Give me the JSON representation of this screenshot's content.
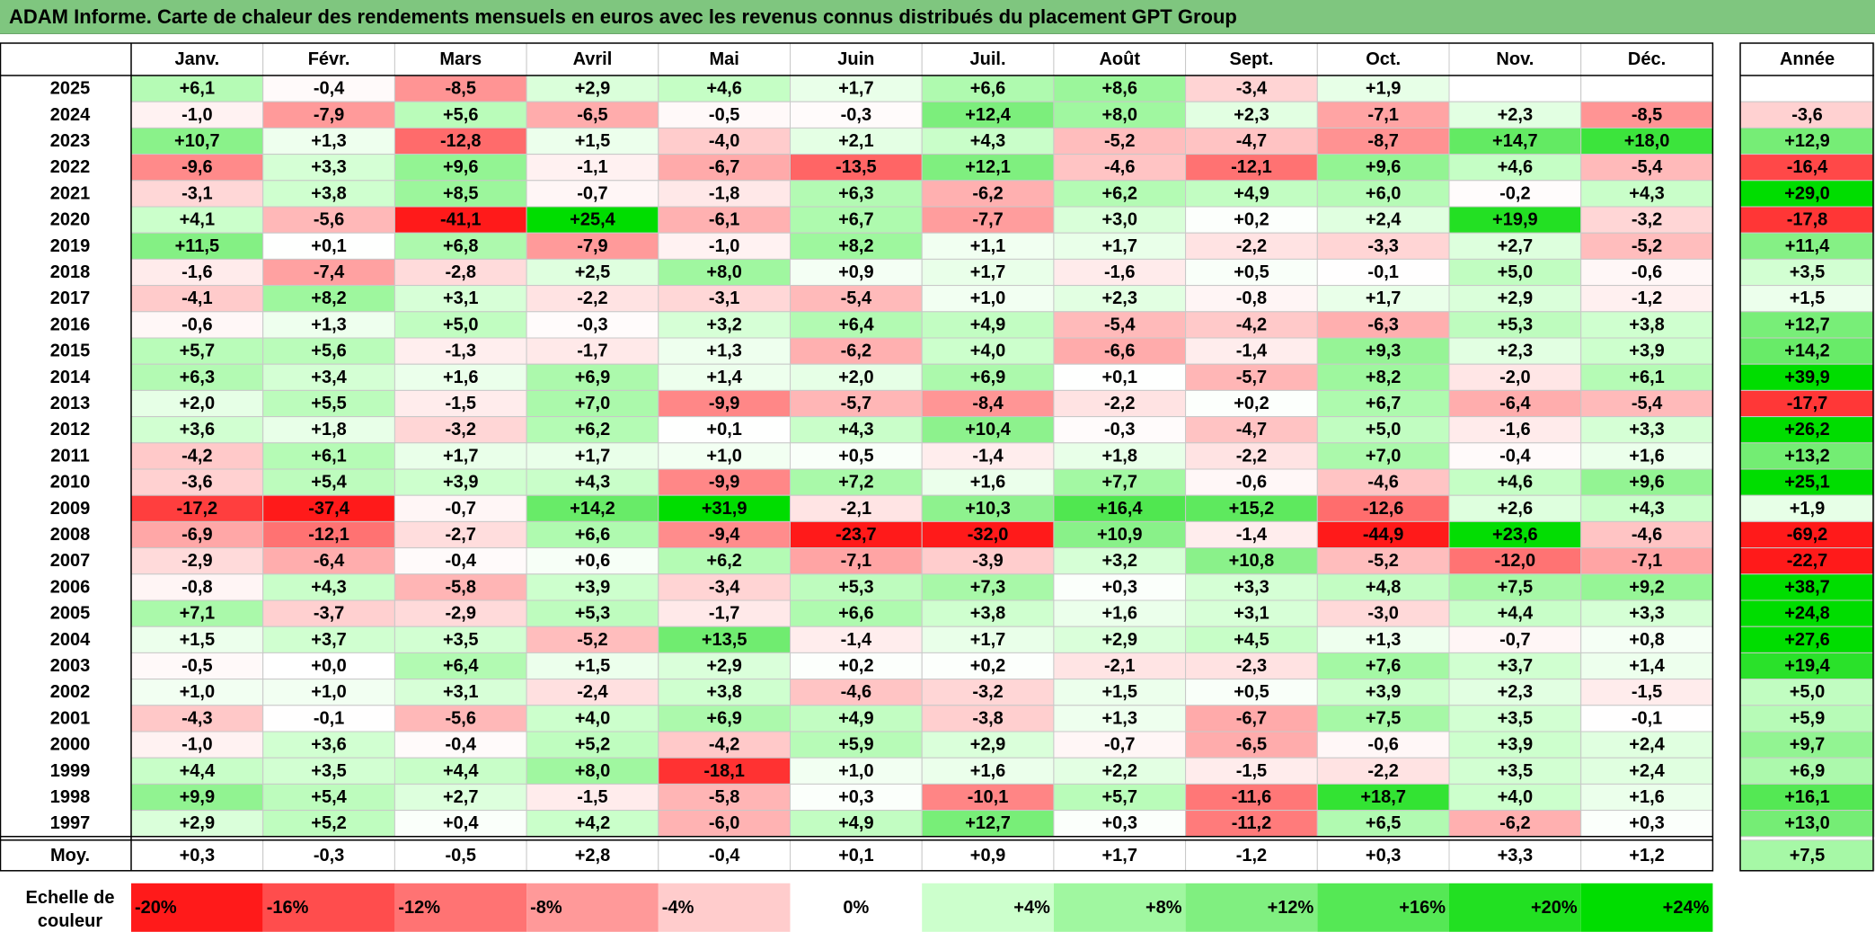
{
  "title": "ADAM Informe. Carte de chaleur des rendements mensuels en euros avec les revenus connus distribués du placement GPT Group",
  "chart_data": {
    "type": "heatmap",
    "columns": [
      "Janv.",
      "Févr.",
      "Mars",
      "Avril",
      "Mai",
      "Juin",
      "Juil.",
      "Août",
      "Sept.",
      "Oct.",
      "Nov.",
      "Déc."
    ],
    "year_header": "Année",
    "rows": [
      {
        "year": "2025",
        "months": [
          6.1,
          -0.4,
          -8.5,
          2.9,
          4.6,
          1.7,
          6.6,
          8.6,
          -3.4,
          1.9,
          null,
          null
        ],
        "annual": null
      },
      {
        "year": "2024",
        "months": [
          -1.0,
          -7.9,
          5.6,
          -6.5,
          -0.5,
          -0.3,
          12.4,
          8.0,
          2.3,
          -7.1,
          2.3,
          -8.5
        ],
        "annual": -3.6
      },
      {
        "year": "2023",
        "months": [
          10.7,
          1.3,
          -12.8,
          1.5,
          -4.0,
          2.1,
          4.3,
          -5.2,
          -4.7,
          -8.7,
          14.7,
          18.0
        ],
        "annual": 12.9
      },
      {
        "year": "2022",
        "months": [
          -9.6,
          3.3,
          9.6,
          -1.1,
          -6.7,
          -13.5,
          12.1,
          -4.6,
          -12.1,
          9.6,
          4.6,
          -5.4
        ],
        "annual": -16.4
      },
      {
        "year": "2021",
        "months": [
          -3.1,
          3.8,
          8.5,
          -0.7,
          -1.8,
          6.3,
          -6.2,
          6.2,
          4.9,
          6.0,
          -0.2,
          4.3
        ],
        "annual": 29.0
      },
      {
        "year": "2020",
        "months": [
          4.1,
          -5.6,
          -41.1,
          25.4,
          -6.1,
          6.7,
          -7.7,
          3.0,
          0.2,
          2.4,
          19.9,
          -3.2
        ],
        "annual": -17.8
      },
      {
        "year": "2019",
        "months": [
          11.5,
          0.1,
          6.8,
          -7.9,
          -1.0,
          8.2,
          1.1,
          1.7,
          -2.2,
          -3.3,
          2.7,
          -5.2
        ],
        "annual": 11.4
      },
      {
        "year": "2018",
        "months": [
          -1.6,
          -7.4,
          -2.8,
          2.5,
          8.0,
          0.9,
          1.7,
          -1.6,
          0.5,
          -0.1,
          5.0,
          -0.6
        ],
        "annual": 3.5
      },
      {
        "year": "2017",
        "months": [
          -4.1,
          8.2,
          3.1,
          -2.2,
          -3.1,
          -5.4,
          1.0,
          2.3,
          -0.8,
          1.7,
          2.9,
          -1.2
        ],
        "annual": 1.5
      },
      {
        "year": "2016",
        "months": [
          -0.6,
          1.3,
          5.0,
          -0.3,
          3.2,
          6.4,
          4.9,
          -5.4,
          -4.2,
          -6.3,
          5.3,
          3.8
        ],
        "annual": 12.7
      },
      {
        "year": "2015",
        "months": [
          5.7,
          5.6,
          -1.3,
          -1.7,
          1.3,
          -6.2,
          4.0,
          -6.6,
          -1.4,
          9.3,
          2.3,
          3.9
        ],
        "annual": 14.2
      },
      {
        "year": "2014",
        "months": [
          6.3,
          3.4,
          1.6,
          6.9,
          1.4,
          2.0,
          6.9,
          0.1,
          -5.7,
          8.2,
          -2.0,
          6.1
        ],
        "annual": 39.9
      },
      {
        "year": "2013",
        "months": [
          2.0,
          5.5,
          -1.5,
          7.0,
          -9.9,
          -5.7,
          -8.4,
          -2.2,
          0.2,
          6.7,
          -6.4,
          -5.4
        ],
        "annual": -17.7
      },
      {
        "year": "2012",
        "months": [
          3.6,
          1.8,
          -3.2,
          6.2,
          0.1,
          4.3,
          10.4,
          -0.3,
          -4.7,
          5.0,
          -1.6,
          3.3
        ],
        "annual": 26.2
      },
      {
        "year": "2011",
        "months": [
          -4.2,
          6.1,
          1.7,
          1.7,
          1.0,
          0.5,
          -1.4,
          1.8,
          -2.2,
          7.0,
          -0.4,
          1.6
        ],
        "annual": 13.2
      },
      {
        "year": "2010",
        "months": [
          -3.6,
          5.4,
          3.9,
          4.3,
          -9.9,
          7.2,
          1.6,
          7.7,
          -0.6,
          -4.6,
          4.6,
          9.6
        ],
        "annual": 25.1
      },
      {
        "year": "2009",
        "months": [
          -17.2,
          -37.4,
          -0.7,
          14.2,
          31.9,
          -2.1,
          10.3,
          16.4,
          15.2,
          -12.6,
          2.6,
          4.3
        ],
        "annual": 1.9
      },
      {
        "year": "2008",
        "months": [
          -6.9,
          -12.1,
          -2.7,
          6.6,
          -9.4,
          -23.7,
          -32.0,
          10.9,
          -1.4,
          -44.9,
          23.6,
          -4.6
        ],
        "annual": -69.2
      },
      {
        "year": "2007",
        "months": [
          -2.9,
          -6.4,
          -0.4,
          0.6,
          6.2,
          -7.1,
          -3.9,
          3.2,
          10.8,
          -5.2,
          -12.0,
          -7.1
        ],
        "annual": -22.7
      },
      {
        "year": "2006",
        "months": [
          -0.8,
          4.3,
          -5.8,
          3.9,
          -3.4,
          5.3,
          7.3,
          0.3,
          3.3,
          4.8,
          7.5,
          9.2
        ],
        "annual": 38.7
      },
      {
        "year": "2005",
        "months": [
          7.1,
          -3.7,
          -2.9,
          5.3,
          -1.7,
          6.6,
          3.8,
          1.6,
          3.1,
          -3.0,
          4.4,
          3.3
        ],
        "annual": 24.8
      },
      {
        "year": "2004",
        "months": [
          1.5,
          3.7,
          3.5,
          -5.2,
          13.5,
          -1.4,
          1.7,
          2.9,
          4.5,
          1.3,
          -0.7,
          0.8
        ],
        "annual": 27.6
      },
      {
        "year": "2003",
        "months": [
          -0.5,
          0.0,
          6.4,
          1.5,
          2.9,
          0.2,
          0.2,
          -2.1,
          -2.3,
          7.6,
          3.7,
          1.4
        ],
        "annual": 19.4
      },
      {
        "year": "2002",
        "months": [
          1.0,
          1.0,
          3.1,
          -2.4,
          3.8,
          -4.6,
          -3.2,
          1.5,
          0.5,
          3.9,
          2.3,
          -1.5
        ],
        "annual": 5.0
      },
      {
        "year": "2001",
        "months": [
          -4.3,
          -0.1,
          -5.6,
          4.0,
          6.9,
          4.9,
          -3.8,
          1.3,
          -6.7,
          7.5,
          3.5,
          -0.1
        ],
        "annual": 5.9
      },
      {
        "year": "2000",
        "months": [
          -1.0,
          3.6,
          -0.4,
          5.2,
          -4.2,
          5.9,
          2.9,
          -0.7,
          -6.5,
          -0.6,
          3.9,
          2.4
        ],
        "annual": 9.7
      },
      {
        "year": "1999",
        "months": [
          4.4,
          3.5,
          4.4,
          8.0,
          -18.1,
          1.0,
          1.6,
          2.2,
          -1.5,
          -2.2,
          3.5,
          2.4
        ],
        "annual": 6.9
      },
      {
        "year": "1998",
        "months": [
          9.9,
          5.4,
          2.7,
          -1.5,
          -5.8,
          0.3,
          -10.1,
          5.7,
          -11.6,
          18.7,
          4.0,
          1.6
        ],
        "annual": 16.1
      },
      {
        "year": "1997",
        "months": [
          2.9,
          5.2,
          0.4,
          4.2,
          -6.0,
          4.9,
          12.7,
          0.3,
          -11.2,
          6.5,
          -6.2,
          0.3
        ],
        "annual": 13.0
      }
    ],
    "average": {
      "label": "Moy.",
      "months": [
        0.3,
        -0.3,
        -0.5,
        2.8,
        -0.4,
        0.1,
        0.9,
        1.7,
        -1.2,
        0.3,
        3.3,
        1.2
      ],
      "annual": 7.5
    },
    "scale": {
      "label_line1": "Echelle de",
      "label_line2": "couleur",
      "stops": [
        {
          "label": "-20%",
          "value": -20,
          "color": "#ff1a1a"
        },
        {
          "label": "-16%",
          "value": -16,
          "color": "#ff4d4d"
        },
        {
          "label": "-12%",
          "value": -12,
          "color": "#ff7373"
        },
        {
          "label": "-8%",
          "value": -8,
          "color": "#ff9999"
        },
        {
          "label": "-4%",
          "value": -4,
          "color": "#ffcccc"
        },
        {
          "label": "0%",
          "value": 0,
          "color": "#ffffff"
        },
        {
          "label": "+4%",
          "value": 4,
          "color": "#ccffcc"
        },
        {
          "label": "+8%",
          "value": 8,
          "color": "#a0f7a0"
        },
        {
          "label": "+12%",
          "value": 12,
          "color": "#80ef80"
        },
        {
          "label": "+16%",
          "value": 16,
          "color": "#55e855"
        },
        {
          "label": "+20%",
          "value": 20,
          "color": "#22e022"
        },
        {
          "label": "+24%",
          "value": 24,
          "color": "#00dd00"
        }
      ]
    },
    "colors": {
      "title_bg": "#7fc67f",
      "grid": "#c8c8c8",
      "border": "#000000"
    }
  }
}
